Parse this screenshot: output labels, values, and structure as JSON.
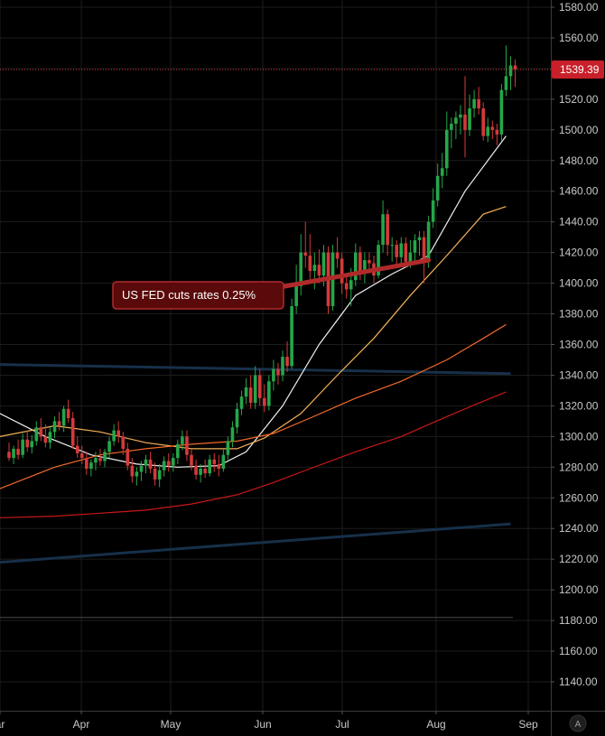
{
  "colors": {
    "background": "#000000",
    "grid": "#1c1c1c",
    "axis_text": "#c8c8c8",
    "candle_up": "#26a64a",
    "candle_down": "#d43a3a",
    "ma20": "#f0f0f0",
    "ma50": "#f5b25a",
    "ma100": "#f06a2a",
    "ma200": "#c81818",
    "trendline": "#17304a",
    "price_line": "#e03030",
    "price_tag": "#c8202a",
    "callout_fill": "#5a0a0a",
    "callout_border": "#b02a2a"
  },
  "price_tag": {
    "value": "1539.39"
  },
  "annotation": {
    "text": "US FED cuts rates 0.25%"
  },
  "auto_button": {
    "label": "A"
  },
  "chart_data": {
    "type": "candlestick",
    "title": "",
    "xlabel": "",
    "ylabel": "",
    "ylim": [
      1128,
      1585
    ],
    "y_ticks": [
      "1580.00",
      "1560.00",
      "1540.00",
      "1520.00",
      "1500.00",
      "1480.00",
      "1460.00",
      "1440.00",
      "1420.00",
      "1400.00",
      "1380.00",
      "1360.00",
      "1340.00",
      "1320.00",
      "1300.00",
      "1280.00",
      "1260.00",
      "1240.00",
      "1220.00",
      "1200.00",
      "1180.00",
      "1160.00",
      "1140.00"
    ],
    "x_ticks": [
      "ar",
      "Apr",
      "May",
      "Jun",
      "Jul",
      "Aug",
      "Sep"
    ],
    "last_price": 1539.39,
    "grid": true,
    "candles": [
      {
        "t": "Mar 22",
        "o": 1290,
        "h": 1296,
        "l": 1284,
        "c": 1286
      },
      {
        "t": "Mar 25",
        "o": 1286,
        "h": 1294,
        "l": 1282,
        "c": 1292
      },
      {
        "t": "Mar 26",
        "o": 1292,
        "h": 1298,
        "l": 1285,
        "c": 1288
      },
      {
        "t": "Mar 27",
        "o": 1288,
        "h": 1302,
        "l": 1286,
        "c": 1298
      },
      {
        "t": "Mar 28",
        "o": 1298,
        "h": 1304,
        "l": 1290,
        "c": 1293
      },
      {
        "t": "Mar 29",
        "o": 1293,
        "h": 1301,
        "l": 1289,
        "c": 1297
      },
      {
        "t": "Apr 01",
        "o": 1297,
        "h": 1310,
        "l": 1294,
        "c": 1306
      },
      {
        "t": "Apr 02",
        "o": 1306,
        "h": 1312,
        "l": 1297,
        "c": 1300
      },
      {
        "t": "Apr 03",
        "o": 1300,
        "h": 1308,
        "l": 1293,
        "c": 1296
      },
      {
        "t": "Apr 04",
        "o": 1296,
        "h": 1306,
        "l": 1292,
        "c": 1303
      },
      {
        "t": "Apr 05",
        "o": 1303,
        "h": 1313,
        "l": 1299,
        "c": 1310
      },
      {
        "t": "Apr 08",
        "o": 1310,
        "h": 1316,
        "l": 1304,
        "c": 1307
      },
      {
        "t": "Apr 09",
        "o": 1307,
        "h": 1320,
        "l": 1303,
        "c": 1318
      },
      {
        "t": "Apr 10",
        "o": 1318,
        "h": 1324,
        "l": 1309,
        "c": 1312
      },
      {
        "t": "Apr 11",
        "o": 1312,
        "h": 1316,
        "l": 1292,
        "c": 1294
      },
      {
        "t": "Apr 12",
        "o": 1294,
        "h": 1300,
        "l": 1286,
        "c": 1289
      },
      {
        "t": "Apr 15",
        "o": 1289,
        "h": 1294,
        "l": 1282,
        "c": 1286
      },
      {
        "t": "Apr 16",
        "o": 1286,
        "h": 1290,
        "l": 1275,
        "c": 1279
      },
      {
        "t": "Apr 17",
        "o": 1279,
        "h": 1285,
        "l": 1274,
        "c": 1283
      },
      {
        "t": "Apr 18",
        "o": 1283,
        "h": 1290,
        "l": 1278,
        "c": 1286
      },
      {
        "t": "Apr 19",
        "o": 1286,
        "h": 1292,
        "l": 1281,
        "c": 1284
      },
      {
        "t": "Apr 22",
        "o": 1284,
        "h": 1292,
        "l": 1280,
        "c": 1290
      },
      {
        "t": "Apr 23",
        "o": 1290,
        "h": 1300,
        "l": 1286,
        "c": 1297
      },
      {
        "t": "Apr 24",
        "o": 1297,
        "h": 1308,
        "l": 1294,
        "c": 1304
      },
      {
        "t": "Apr 25",
        "o": 1304,
        "h": 1310,
        "l": 1296,
        "c": 1300
      },
      {
        "t": "Apr 26",
        "o": 1300,
        "h": 1303,
        "l": 1288,
        "c": 1292
      },
      {
        "t": "Apr 29",
        "o": 1292,
        "h": 1296,
        "l": 1278,
        "c": 1281
      },
      {
        "t": "Apr 30",
        "o": 1281,
        "h": 1286,
        "l": 1270,
        "c": 1274
      },
      {
        "t": "May 01",
        "o": 1274,
        "h": 1280,
        "l": 1268,
        "c": 1277
      },
      {
        "t": "May 02",
        "o": 1277,
        "h": 1284,
        "l": 1271,
        "c": 1281
      },
      {
        "t": "May 03",
        "o": 1281,
        "h": 1288,
        "l": 1276,
        "c": 1285
      },
      {
        "t": "May 06",
        "o": 1285,
        "h": 1290,
        "l": 1276,
        "c": 1279
      },
      {
        "t": "May 07",
        "o": 1279,
        "h": 1283,
        "l": 1268,
        "c": 1272
      },
      {
        "t": "May 08",
        "o": 1272,
        "h": 1282,
        "l": 1267,
        "c": 1278
      },
      {
        "t": "May 09",
        "o": 1278,
        "h": 1287,
        "l": 1274,
        "c": 1284
      },
      {
        "t": "May 10",
        "o": 1284,
        "h": 1289,
        "l": 1277,
        "c": 1281
      },
      {
        "t": "May 13",
        "o": 1281,
        "h": 1289,
        "l": 1277,
        "c": 1286
      },
      {
        "t": "May 14",
        "o": 1286,
        "h": 1298,
        "l": 1282,
        "c": 1295
      },
      {
        "t": "May 15",
        "o": 1295,
        "h": 1304,
        "l": 1291,
        "c": 1300
      },
      {
        "t": "May 16",
        "o": 1300,
        "h": 1304,
        "l": 1284,
        "c": 1288
      },
      {
        "t": "May 17",
        "o": 1288,
        "h": 1292,
        "l": 1278,
        "c": 1281
      },
      {
        "t": "May 20",
        "o": 1281,
        "h": 1285,
        "l": 1272,
        "c": 1275
      },
      {
        "t": "May 21",
        "o": 1275,
        "h": 1282,
        "l": 1270,
        "c": 1279
      },
      {
        "t": "May 22",
        "o": 1279,
        "h": 1285,
        "l": 1273,
        "c": 1276
      },
      {
        "t": "May 23",
        "o": 1276,
        "h": 1288,
        "l": 1274,
        "c": 1285
      },
      {
        "t": "May 24",
        "o": 1285,
        "h": 1289,
        "l": 1277,
        "c": 1282
      },
      {
        "t": "May 28",
        "o": 1282,
        "h": 1288,
        "l": 1274,
        "c": 1279
      },
      {
        "t": "May 29",
        "o": 1279,
        "h": 1292,
        "l": 1277,
        "c": 1288
      },
      {
        "t": "May 30",
        "o": 1288,
        "h": 1300,
        "l": 1285,
        "c": 1297
      },
      {
        "t": "May 31",
        "o": 1297,
        "h": 1310,
        "l": 1293,
        "c": 1306
      },
      {
        "t": "Jun 03",
        "o": 1306,
        "h": 1322,
        "l": 1302,
        "c": 1318
      },
      {
        "t": "Jun 04",
        "o": 1318,
        "h": 1330,
        "l": 1314,
        "c": 1326
      },
      {
        "t": "Jun 05",
        "o": 1326,
        "h": 1338,
        "l": 1321,
        "c": 1332
      },
      {
        "t": "Jun 06",
        "o": 1332,
        "h": 1340,
        "l": 1318,
        "c": 1322
      },
      {
        "t": "Jun 07",
        "o": 1322,
        "h": 1346,
        "l": 1318,
        "c": 1340
      },
      {
        "t": "Jun 10",
        "o": 1340,
        "h": 1344,
        "l": 1320,
        "c": 1325
      },
      {
        "t": "Jun 11",
        "o": 1325,
        "h": 1334,
        "l": 1316,
        "c": 1320
      },
      {
        "t": "Jun 12",
        "o": 1320,
        "h": 1340,
        "l": 1317,
        "c": 1336
      },
      {
        "t": "Jun 13",
        "o": 1336,
        "h": 1350,
        "l": 1330,
        "c": 1344
      },
      {
        "t": "Jun 14",
        "o": 1344,
        "h": 1348,
        "l": 1334,
        "c": 1340
      },
      {
        "t": "Jun 17",
        "o": 1340,
        "h": 1356,
        "l": 1336,
        "c": 1352
      },
      {
        "t": "Jun 18",
        "o": 1352,
        "h": 1362,
        "l": 1342,
        "c": 1346
      },
      {
        "t": "Jun 19",
        "o": 1346,
        "h": 1390,
        "l": 1344,
        "c": 1385
      },
      {
        "t": "Jun 20",
        "o": 1385,
        "h": 1412,
        "l": 1380,
        "c": 1398
      },
      {
        "t": "Jun 21",
        "o": 1398,
        "h": 1432,
        "l": 1392,
        "c": 1420
      },
      {
        "t": "Jun 24",
        "o": 1420,
        "h": 1440,
        "l": 1410,
        "c": 1418
      },
      {
        "t": "Jun 25",
        "o": 1418,
        "h": 1432,
        "l": 1400,
        "c": 1408
      },
      {
        "t": "Jun 26",
        "o": 1408,
        "h": 1420,
        "l": 1396,
        "c": 1412
      },
      {
        "t": "Jun 27",
        "o": 1412,
        "h": 1422,
        "l": 1400,
        "c": 1405
      },
      {
        "t": "Jun 28",
        "o": 1405,
        "h": 1425,
        "l": 1398,
        "c": 1420
      },
      {
        "t": "Jul 01",
        "o": 1420,
        "h": 1424,
        "l": 1380,
        "c": 1385
      },
      {
        "t": "Jul 02",
        "o": 1385,
        "h": 1425,
        "l": 1382,
        "c": 1420
      },
      {
        "t": "Jul 03",
        "o": 1420,
        "h": 1430,
        "l": 1410,
        "c": 1416
      },
      {
        "t": "Jul 05",
        "o": 1416,
        "h": 1420,
        "l": 1393,
        "c": 1400
      },
      {
        "t": "Jul 08",
        "o": 1400,
        "h": 1406,
        "l": 1390,
        "c": 1396
      },
      {
        "t": "Jul 09",
        "o": 1396,
        "h": 1410,
        "l": 1385,
        "c": 1402
      },
      {
        "t": "Jul 10",
        "o": 1402,
        "h": 1426,
        "l": 1398,
        "c": 1420
      },
      {
        "t": "Jul 11",
        "o": 1420,
        "h": 1424,
        "l": 1402,
        "c": 1408
      },
      {
        "t": "Jul 12",
        "o": 1408,
        "h": 1420,
        "l": 1400,
        "c": 1415
      },
      {
        "t": "Jul 15",
        "o": 1415,
        "h": 1420,
        "l": 1407,
        "c": 1413
      },
      {
        "t": "Jul 16",
        "o": 1413,
        "h": 1418,
        "l": 1400,
        "c": 1405
      },
      {
        "t": "Jul 17",
        "o": 1405,
        "h": 1428,
        "l": 1403,
        "c": 1425
      },
      {
        "t": "Jul 18",
        "o": 1425,
        "h": 1454,
        "l": 1420,
        "c": 1445
      },
      {
        "t": "Jul 19",
        "o": 1445,
        "h": 1448,
        "l": 1418,
        "c": 1425
      },
      {
        "t": "Jul 22",
        "o": 1425,
        "h": 1430,
        "l": 1414,
        "c": 1425
      },
      {
        "t": "Jul 23",
        "o": 1425,
        "h": 1428,
        "l": 1410,
        "c": 1417
      },
      {
        "t": "Jul 24",
        "o": 1417,
        "h": 1430,
        "l": 1412,
        "c": 1426
      },
      {
        "t": "Jul 25",
        "o": 1426,
        "h": 1430,
        "l": 1410,
        "c": 1414
      },
      {
        "t": "Jul 26",
        "o": 1414,
        "h": 1428,
        "l": 1410,
        "c": 1420
      },
      {
        "t": "Jul 29",
        "o": 1420,
        "h": 1432,
        "l": 1414,
        "c": 1428
      },
      {
        "t": "Jul 30",
        "o": 1428,
        "h": 1434,
        "l": 1418,
        "c": 1430
      },
      {
        "t": "Jul 31",
        "o": 1430,
        "h": 1434,
        "l": 1400,
        "c": 1414
      },
      {
        "t": "Aug 01",
        "o": 1414,
        "h": 1444,
        "l": 1410,
        "c": 1440
      },
      {
        "t": "Aug 02",
        "o": 1440,
        "h": 1462,
        "l": 1436,
        "c": 1454
      },
      {
        "t": "Aug 05",
        "o": 1454,
        "h": 1478,
        "l": 1450,
        "c": 1470
      },
      {
        "t": "Aug 06",
        "o": 1470,
        "h": 1485,
        "l": 1462,
        "c": 1475
      },
      {
        "t": "Aug 07",
        "o": 1475,
        "h": 1512,
        "l": 1470,
        "c": 1500
      },
      {
        "t": "Aug 08",
        "o": 1500,
        "h": 1508,
        "l": 1488,
        "c": 1504
      },
      {
        "t": "Aug 09",
        "o": 1504,
        "h": 1512,
        "l": 1494,
        "c": 1508
      },
      {
        "t": "Aug 12",
        "o": 1508,
        "h": 1516,
        "l": 1497,
        "c": 1510
      },
      {
        "t": "Aug 13",
        "o": 1510,
        "h": 1535,
        "l": 1482,
        "c": 1500
      },
      {
        "t": "Aug 14",
        "o": 1500,
        "h": 1523,
        "l": 1496,
        "c": 1514
      },
      {
        "t": "Aug 15",
        "o": 1514,
        "h": 1526,
        "l": 1508,
        "c": 1520
      },
      {
        "t": "Aug 16",
        "o": 1520,
        "h": 1528,
        "l": 1510,
        "c": 1514
      },
      {
        "t": "Aug 19",
        "o": 1514,
        "h": 1518,
        "l": 1493,
        "c": 1496
      },
      {
        "t": "Aug 20",
        "o": 1496,
        "h": 1508,
        "l": 1492,
        "c": 1502
      },
      {
        "t": "Aug 21",
        "o": 1502,
        "h": 1506,
        "l": 1494,
        "c": 1500
      },
      {
        "t": "Aug 22",
        "o": 1500,
        "h": 1504,
        "l": 1490,
        "c": 1497
      },
      {
        "t": "Aug 23",
        "o": 1497,
        "h": 1530,
        "l": 1493,
        "c": 1526
      },
      {
        "t": "Aug 26",
        "o": 1526,
        "h": 1555,
        "l": 1522,
        "c": 1535
      },
      {
        "t": "Aug 27",
        "o": 1535,
        "h": 1548,
        "l": 1526,
        "c": 1542
      },
      {
        "t": "Aug 28",
        "o": 1542,
        "h": 1546,
        "l": 1528,
        "c": 1539.39
      }
    ],
    "moving_averages": [
      {
        "color": "#f0f0f0",
        "values": [
          [
            -2,
            1315
          ],
          [
            8,
            1300
          ],
          [
            18,
            1288
          ],
          [
            28,
            1282
          ],
          [
            37,
            1280
          ],
          [
            46,
            1281
          ],
          [
            52,
            1290
          ],
          [
            60,
            1320
          ],
          [
            68,
            1360
          ],
          [
            76,
            1392
          ],
          [
            84,
            1406
          ],
          [
            92,
            1418
          ],
          [
            100,
            1460
          ],
          [
            109,
            1496
          ]
        ]
      },
      {
        "color": "#f5b25a",
        "values": [
          [
            -2,
            1300
          ],
          [
            10,
            1307
          ],
          [
            20,
            1303
          ],
          [
            30,
            1296
          ],
          [
            40,
            1292
          ],
          [
            50,
            1292
          ],
          [
            56,
            1299
          ],
          [
            64,
            1315
          ],
          [
            72,
            1340
          ],
          [
            80,
            1364
          ],
          [
            88,
            1392
          ],
          [
            96,
            1418
          ],
          [
            104,
            1445
          ],
          [
            109,
            1450
          ]
        ]
      },
      {
        "color": "#f06a2a",
        "values": [
          [
            -2,
            1266
          ],
          [
            10,
            1280
          ],
          [
            20,
            1288
          ],
          [
            30,
            1292
          ],
          [
            40,
            1295
          ],
          [
            50,
            1297
          ],
          [
            58,
            1302
          ],
          [
            66,
            1312
          ],
          [
            76,
            1325
          ],
          [
            86,
            1336
          ],
          [
            96,
            1350
          ],
          [
            104,
            1364
          ],
          [
            109,
            1373
          ]
        ]
      },
      {
        "color": "#c81818",
        "values": [
          [
            -2,
            1247
          ],
          [
            10,
            1248
          ],
          [
            20,
            1250
          ],
          [
            30,
            1252
          ],
          [
            40,
            1256
          ],
          [
            50,
            1262
          ],
          [
            58,
            1270
          ],
          [
            66,
            1279
          ],
          [
            76,
            1290
          ],
          [
            86,
            1300
          ],
          [
            96,
            1313
          ],
          [
            104,
            1323
          ],
          [
            109,
            1329
          ]
        ]
      }
    ],
    "trendlines": [
      {
        "values": [
          [
            -2,
            1347
          ],
          [
            110,
            1341
          ]
        ]
      },
      {
        "values": [
          [
            -2,
            1218
          ],
          [
            110,
            1243
          ]
        ]
      }
    ],
    "horizontal_line": 1182,
    "annotation": {
      "text": "US FED cuts rates 0.25%",
      "anchor_index": 92,
      "anchor_price": 1415
    }
  }
}
